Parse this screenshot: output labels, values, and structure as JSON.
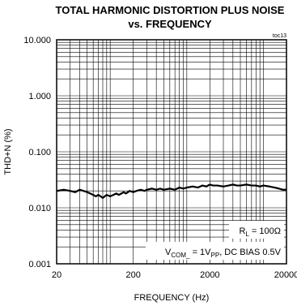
{
  "chart_data": {
    "type": "line",
    "title_line1": "TOTAL HARMONIC DISTORTION PLUS NOISE",
    "title_line2": "vs. FREQUENCY",
    "figure_code": "toc13",
    "xlabel": "FREQUENCY (Hz)",
    "ylabel": "THD+N (%)",
    "x_scale": "log",
    "y_scale": "log",
    "xlim": [
      20,
      20000
    ],
    "ylim": [
      0.001,
      10
    ],
    "x_ticks": [
      {
        "value": 20,
        "label": "20"
      },
      {
        "value": 200,
        "label": "200"
      },
      {
        "value": 2000,
        "label": "2000"
      },
      {
        "value": 20000,
        "label": "20000"
      }
    ],
    "y_ticks": [
      {
        "value": 10,
        "label": "10.000"
      },
      {
        "value": 1,
        "label": "1.000"
      },
      {
        "value": 0.1,
        "label": "0.100"
      },
      {
        "value": 0.01,
        "label": "0.010"
      },
      {
        "value": 0.001,
        "label": "0.001"
      }
    ],
    "grid": true,
    "annotations": {
      "rl": {
        "main": "R",
        "sub": "L",
        "rest": " = 100Ω"
      },
      "vcom": {
        "main": "V",
        "sub": "COM_",
        "mid": " = 1V",
        "sub2": "PP",
        "rest": ", DC BIAS 0.5V"
      }
    },
    "series": [
      {
        "x": [
          20,
          25,
          30,
          35,
          40,
          45,
          50,
          55,
          60,
          65,
          70,
          75,
          80,
          85,
          90,
          100,
          110,
          120,
          130,
          140,
          150,
          160,
          170,
          180,
          200,
          220,
          250,
          280,
          300,
          350,
          400,
          450,
          500,
          600,
          700,
          800,
          900,
          1000,
          1200,
          1400,
          1600,
          1800,
          2000,
          2200,
          2500,
          3000,
          3500,
          4000,
          4500,
          5000,
          6000,
          7000,
          8000,
          9000,
          10000,
          12000,
          14000,
          16000,
          18000,
          20000
        ],
        "y": [
          0.02,
          0.021,
          0.02,
          0.019,
          0.021,
          0.02,
          0.019,
          0.018,
          0.017,
          0.016,
          0.017,
          0.016,
          0.015,
          0.016,
          0.017,
          0.016,
          0.017,
          0.018,
          0.017,
          0.018,
          0.019,
          0.018,
          0.019,
          0.02,
          0.019,
          0.02,
          0.021,
          0.02,
          0.021,
          0.022,
          0.021,
          0.022,
          0.021,
          0.022,
          0.021,
          0.023,
          0.022,
          0.023,
          0.024,
          0.023,
          0.025,
          0.024,
          0.026,
          0.025,
          0.025,
          0.024,
          0.025,
          0.026,
          0.025,
          0.025,
          0.026,
          0.025,
          0.025,
          0.024,
          0.025,
          0.024,
          0.023,
          0.022,
          0.021,
          0.021
        ]
      }
    ]
  }
}
